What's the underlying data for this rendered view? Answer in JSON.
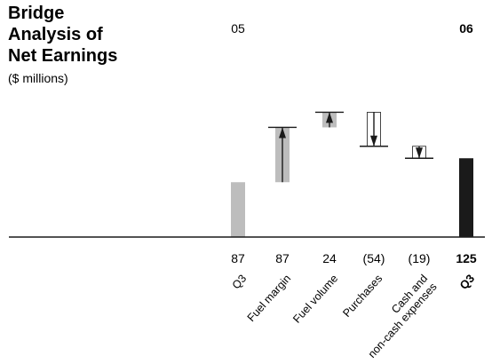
{
  "chart_data": {
    "type": "bar",
    "subtype": "waterfall",
    "title_lines": [
      "Bridge",
      "Analysis of",
      "Net Earnings"
    ],
    "subtitle": "($ millions)",
    "period_labels": {
      "start": "05",
      "end": "06"
    },
    "categories": [
      [
        "Q3"
      ],
      [
        "Fuel margin"
      ],
      [
        "Fuel volume"
      ],
      [
        "Purchases"
      ],
      [
        "Cash and",
        "non-cash expenses"
      ],
      [
        "Q3"
      ]
    ],
    "value_labels": [
      "87",
      "87",
      "24",
      "(54)",
      "(19)",
      "125"
    ],
    "values": [
      87,
      87,
      24,
      -54,
      -19,
      125
    ],
    "kinds": [
      "total",
      "increase",
      "increase",
      "decrease",
      "decrease",
      "total"
    ],
    "ylim": [
      0,
      190
    ],
    "grid": false,
    "legend": "none",
    "colors": {
      "start_total": "#bdbdbd",
      "increase_fill": "#bdbdbd",
      "decrease_fill": "#ffffff",
      "end_total": "#1a1a1a",
      "arrow": "#1a1a1a",
      "baseline": "#1a1a1a"
    }
  }
}
